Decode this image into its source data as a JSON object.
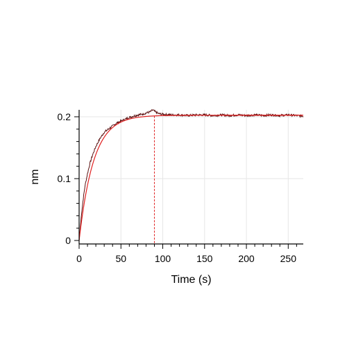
{
  "chart_data": {
    "type": "line",
    "title": "",
    "xlabel": "Time (s)",
    "ylabel": "nm",
    "xlim": [
      0,
      268
    ],
    "ylim": [
      0,
      0.21
    ],
    "x_ticks": [
      0,
      50,
      100,
      150,
      200,
      250
    ],
    "x_tick_labels": [
      "0",
      "50",
      "100",
      "150",
      "200",
      "250"
    ],
    "y_ticks": [
      0,
      0.1,
      0.2
    ],
    "y_tick_labels": [
      "0",
      "0.1",
      "0.2"
    ],
    "grid": true,
    "legend": "none",
    "series": [
      {
        "role": "measured",
        "color": "#5a1010",
        "x": [
          0,
          1,
          2,
          3,
          5,
          7,
          10,
          13,
          16,
          20,
          25,
          30,
          35,
          40,
          45,
          50,
          55,
          60,
          65,
          70,
          75,
          80,
          85,
          88,
          90,
          95,
          100,
          110,
          120,
          130,
          140,
          150,
          160,
          170,
          180,
          190,
          200,
          210,
          220,
          230,
          240,
          250,
          260,
          268
        ],
        "y": [
          0,
          0.015,
          0.03,
          0.045,
          0.068,
          0.088,
          0.108,
          0.125,
          0.138,
          0.152,
          0.165,
          0.175,
          0.18,
          0.185,
          0.19,
          0.193,
          0.196,
          0.199,
          0.201,
          0.203,
          0.204,
          0.206,
          0.208,
          0.211,
          0.209,
          0.205,
          0.204,
          0.203,
          0.203,
          0.202,
          0.203,
          0.203,
          0.202,
          0.203,
          0.202,
          0.203,
          0.202,
          0.203,
          0.202,
          0.203,
          0.202,
          0.203,
          0.202,
          0.201
        ]
      },
      {
        "role": "fit",
        "color": "#e02020",
        "model": "association",
        "plateau": 0.2025,
        "rate": 0.058,
        "x_end": 268
      }
    ],
    "marker_line": {
      "x": 90,
      "color": "#e02020",
      "style": "dashed"
    }
  }
}
